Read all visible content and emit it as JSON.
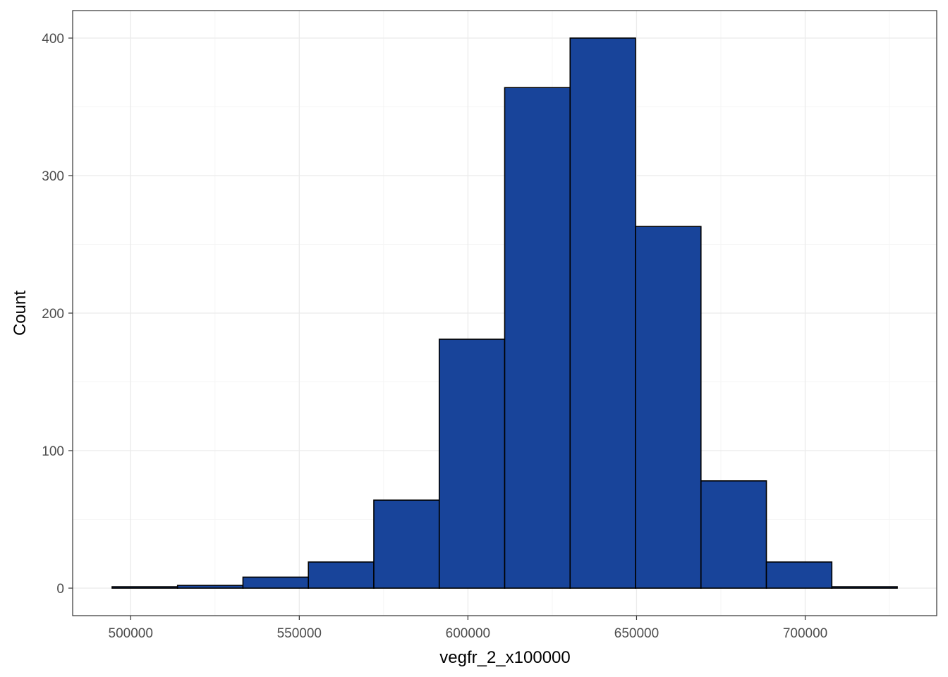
{
  "chart_data": {
    "type": "bar",
    "subtype": "histogram",
    "title": "",
    "xlabel": "vegfr_2_x100000",
    "ylabel": "Count",
    "bins": [
      {
        "x_start": 494500,
        "x_end": 513900,
        "count": 1
      },
      {
        "x_start": 513900,
        "x_end": 533300,
        "count": 2
      },
      {
        "x_start": 533300,
        "x_end": 552700,
        "count": 8
      },
      {
        "x_start": 552700,
        "x_end": 572100,
        "count": 19
      },
      {
        "x_start": 572100,
        "x_end": 591500,
        "count": 64
      },
      {
        "x_start": 591500,
        "x_end": 610900,
        "count": 181
      },
      {
        "x_start": 610900,
        "x_end": 630300,
        "count": 364
      },
      {
        "x_start": 630300,
        "x_end": 649700,
        "count": 400
      },
      {
        "x_start": 649700,
        "x_end": 669100,
        "count": 263
      },
      {
        "x_start": 669100,
        "x_end": 688500,
        "count": 78
      },
      {
        "x_start": 688500,
        "x_end": 707900,
        "count": 19
      },
      {
        "x_start": 707900,
        "x_end": 727300,
        "count": 1
      }
    ],
    "xlim": [
      482800,
      739000
    ],
    "ylim": [
      -20,
      420
    ],
    "x_ticks": [
      500000,
      550000,
      600000,
      650000,
      700000
    ],
    "x_tick_labels": [
      "500000",
      "550000",
      "600000",
      "650000",
      "700000"
    ],
    "y_ticks": [
      0,
      100,
      200,
      300,
      400
    ],
    "y_tick_labels": [
      "0",
      "100",
      "200",
      "300",
      "400"
    ],
    "grid": true,
    "legend": "none",
    "colors": {
      "bar_fill": "#18449A",
      "bar_stroke": "#000000",
      "grid_major": "#EBEBEB",
      "grid_minor": "#F5F5F5",
      "panel_border": "#333333"
    }
  }
}
